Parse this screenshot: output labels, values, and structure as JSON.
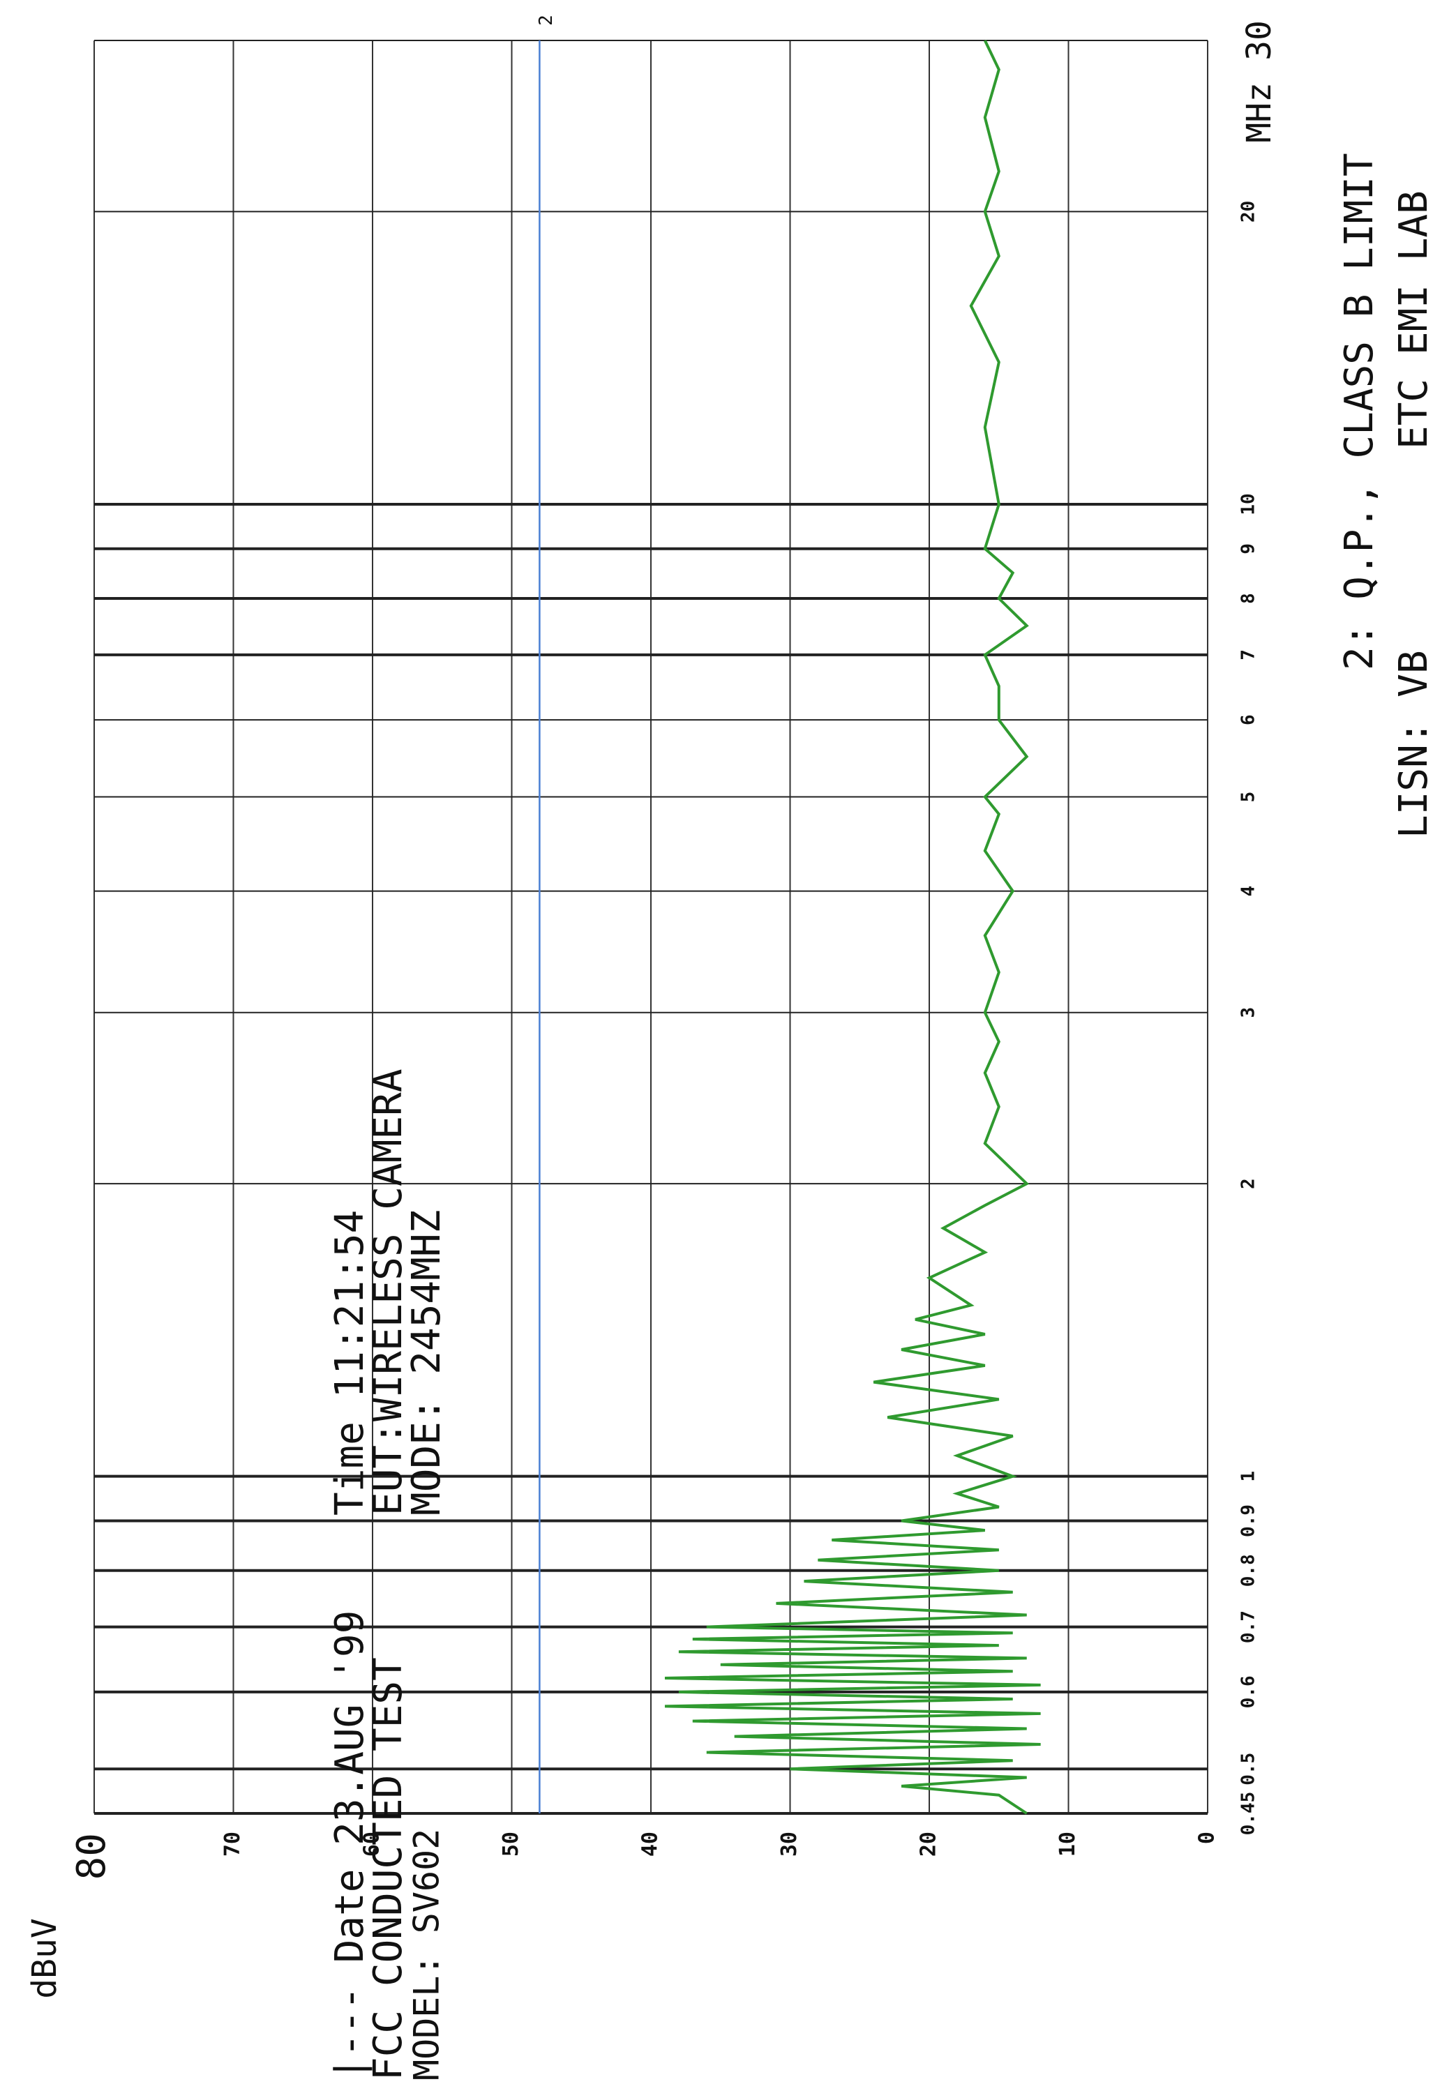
{
  "chart_data": {
    "type": "line",
    "ylabel": "dBuV",
    "xlabel": "MHz",
    "xscale": "log",
    "xlim": [
      0.45,
      30
    ],
    "ylim": [
      0,
      80
    ],
    "xticks": [
      0.45,
      0.5,
      0.6,
      0.7,
      0.8,
      0.9,
      1,
      2,
      3,
      4,
      5,
      6,
      7,
      8,
      9,
      10,
      20,
      30
    ],
    "yticks": [
      0,
      10,
      20,
      30,
      40,
      50,
      60,
      70,
      80
    ],
    "grid": true,
    "color": "#2f9a2f",
    "x": [
      0.45,
      0.47,
      0.48,
      0.49,
      0.5,
      0.51,
      0.52,
      0.53,
      0.54,
      0.55,
      0.56,
      0.57,
      0.58,
      0.59,
      0.6,
      0.61,
      0.62,
      0.63,
      0.64,
      0.65,
      0.66,
      0.67,
      0.68,
      0.69,
      0.7,
      0.72,
      0.74,
      0.76,
      0.78,
      0.8,
      0.82,
      0.84,
      0.86,
      0.88,
      0.9,
      0.93,
      0.96,
      1,
      1.05,
      1.1,
      1.15,
      1.2,
      1.25,
      1.3,
      1.35,
      1.4,
      1.45,
      1.5,
      1.6,
      1.7,
      1.8,
      1.9,
      2,
      2.2,
      2.4,
      2.6,
      2.8,
      3,
      3.3,
      3.6,
      4,
      4.4,
      4.8,
      5,
      5.5,
      6,
      6.5,
      7,
      7.5,
      8,
      8.5,
      9,
      10,
      12,
      14,
      16,
      18,
      20,
      22,
      25,
      28,
      30
    ],
    "values": [
      13,
      15,
      22,
      13,
      30,
      14,
      36,
      12,
      34,
      13,
      37,
      12,
      39,
      14,
      38,
      12,
      39,
      14,
      35,
      13,
      38,
      15,
      37,
      14,
      36,
      13,
      31,
      14,
      29,
      15,
      28,
      15,
      27,
      16,
      22,
      15,
      18,
      14,
      18,
      14,
      23,
      15,
      24,
      16,
      22,
      16,
      21,
      17,
      20,
      16,
      19,
      16,
      13,
      16,
      15,
      16,
      15,
      16,
      15,
      16,
      14,
      16,
      15,
      16,
      13,
      15,
      15,
      16,
      13,
      15,
      14,
      16,
      15,
      16,
      15,
      17,
      15,
      16,
      15,
      16,
      15,
      16
    ],
    "limit": {
      "value": 48,
      "label": "2",
      "color": "#4a7fd4"
    },
    "annotations": [
      "|--- Date 23.AUG '99",
      "FCC CONDUCTED TEST",
      "MODEL: SV602",
      "Time 11:21:54",
      "EUT:WIRELESS CAMERA",
      "MODE: 2454MHZ",
      "2: Q.P., CLASS B  LIMIT",
      "LISN: VB",
      "ETC EMI LAB"
    ]
  }
}
